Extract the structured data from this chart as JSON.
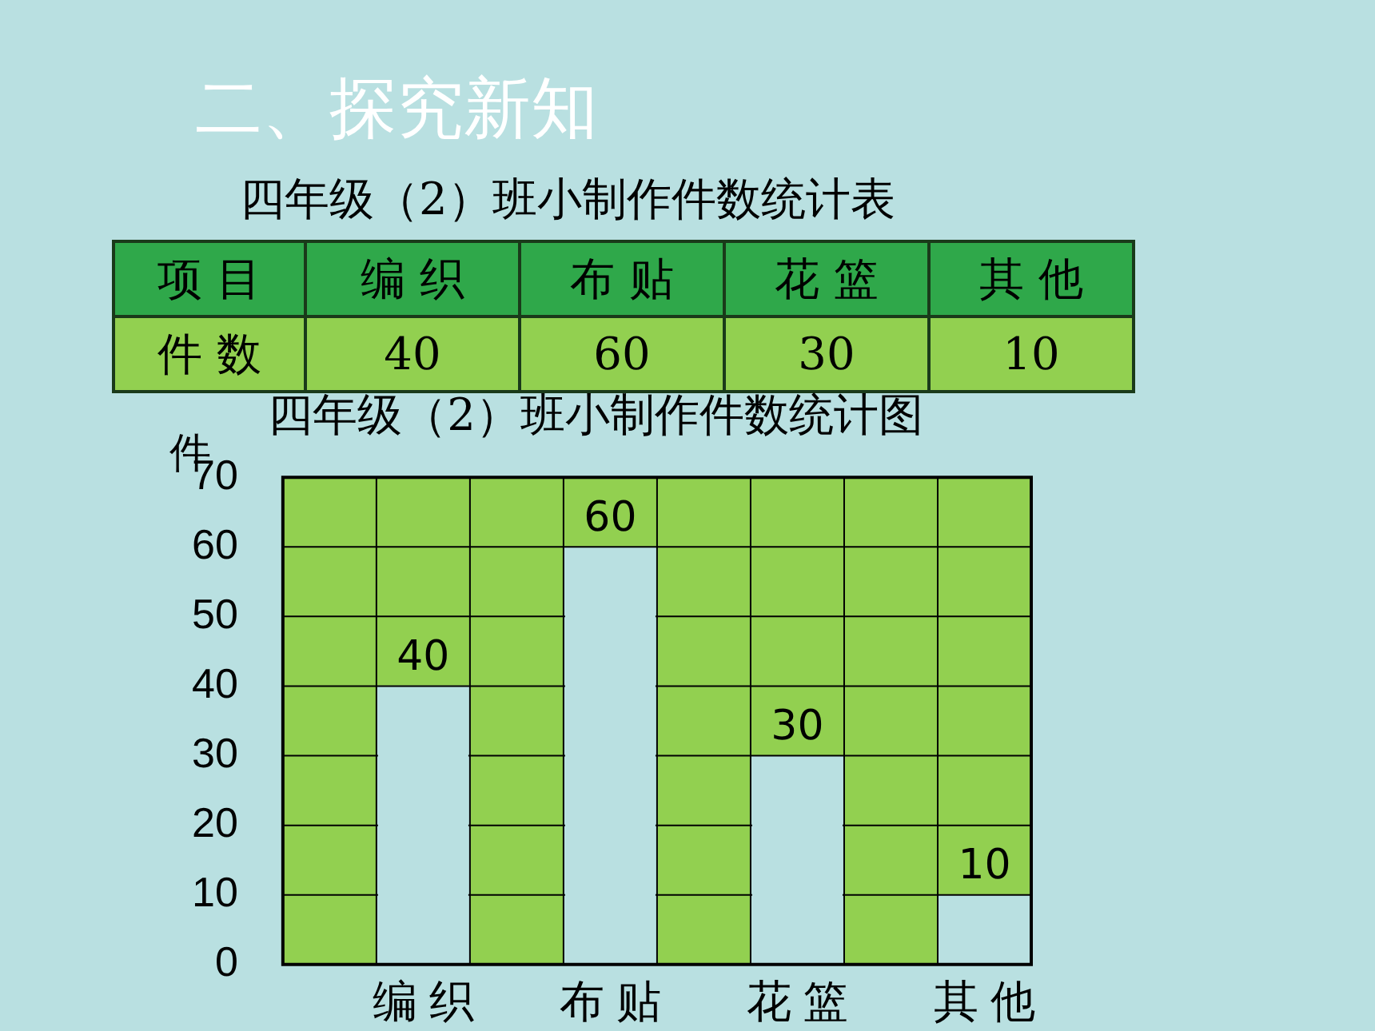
{
  "chart_data": {
    "type": "bar",
    "title": "四年级（2）班小制作件数统计图",
    "ylabel": "件",
    "annotations": [
      "二、探究新知",
      "四年级（2）班小制作件数统计表",
      "项 目",
      "件 数",
      "40",
      "60",
      "30",
      "10"
    ],
    "categories": [
      "编 织",
      "布 贴",
      "花 篮",
      "其 他"
    ],
    "values": [
      40,
      60,
      30,
      10
    ],
    "value_labels": [
      "40",
      "60",
      "30",
      "10"
    ],
    "color": "#b9e0e1",
    "ylim": [
      0,
      70
    ],
    "yticks": [
      0,
      10,
      20,
      30,
      40,
      50,
      60,
      70
    ],
    "grid": true
  }
}
